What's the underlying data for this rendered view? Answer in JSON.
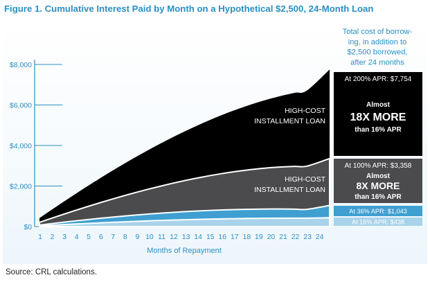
{
  "title": "Figure 1. Cumulative Interest Paid by Month on a Hypothetical $2,500, 24-Month Loan",
  "source": "Source: CRL calculations.",
  "colors": {
    "accent": "#2a8fc4",
    "apr200": "#000000",
    "apr100": "#4b4b4d",
    "apr36": "#3f9fd1",
    "apr16": "#a9d3ea"
  },
  "chart_data": {
    "type": "area",
    "xlabel": "Months of Repayment",
    "ylabel": "",
    "x": [
      1,
      2,
      3,
      4,
      5,
      6,
      7,
      8,
      9,
      10,
      11,
      12,
      13,
      14,
      15,
      16,
      17,
      18,
      19,
      20,
      21,
      22,
      23,
      24
    ],
    "yticks": [
      "$0",
      "$2,000",
      "$4,000",
      "$6,000",
      "$8,000"
    ],
    "ytick_values": [
      0,
      2000,
      4000,
      6000,
      8000
    ],
    "ylim": [
      0,
      8000
    ],
    "series": [
      {
        "name": "At 200% APR",
        "values": [
          417,
          828,
          1231,
          1626,
          2013,
          2390,
          2757,
          3113,
          3458,
          3791,
          4111,
          4418,
          4711,
          4989,
          5252,
          5499,
          5729,
          5942,
          6136,
          6311,
          6466,
          6600,
          6711,
          7754
        ]
      },
      {
        "name": "At 100% APR",
        "values": [
          208,
          412,
          611,
          806,
          996,
          1180,
          1358,
          1530,
          1695,
          1852,
          2001,
          2143,
          2275,
          2398,
          2511,
          2613,
          2704,
          2783,
          2850,
          2904,
          2944,
          2970,
          2981,
          3358
        ]
      },
      {
        "name": "At 36% APR",
        "values": [
          75,
          147,
          217,
          284,
          348,
          409,
          467,
          521,
          572,
          619,
          663,
          702,
          738,
          770,
          797,
          820,
          838,
          852,
          861,
          866,
          866,
          861,
          850,
          1043
        ]
      },
      {
        "name": "At 16% APR",
        "values": [
          33,
          66,
          97,
          127,
          156,
          184,
          210,
          235,
          259,
          281,
          302,
          321,
          338,
          354,
          368,
          380,
          391,
          400,
          407,
          412,
          415,
          416,
          415,
          438
        ]
      }
    ],
    "curve_labels": [
      "HIGH-COST INSTALLMENT LOAN",
      "HIGH-COST INSTALLMENT LOAN"
    ],
    "side_panel": {
      "header": "Total cost of borrowing, in addition to $2,500 borrowed, after 24 months",
      "header_lines": [
        "Total cost of borrow-",
        "ing, in addition to",
        "$2,500 borrowed,",
        "after 24 months"
      ],
      "boxes": [
        {
          "label": "At 200% APR: $7,754",
          "line1": "Almost",
          "big": "18X MORE",
          "line3": "than 16% APR"
        },
        {
          "label": "At 100% APR: $3,358",
          "line1": "Almost",
          "big": "8X MORE",
          "line3": "than 16% APR"
        },
        {
          "label": "At 36% APR: $1,043"
        },
        {
          "label": "At 16% APR: $438"
        }
      ]
    },
    "grid": false,
    "legend": "none"
  }
}
